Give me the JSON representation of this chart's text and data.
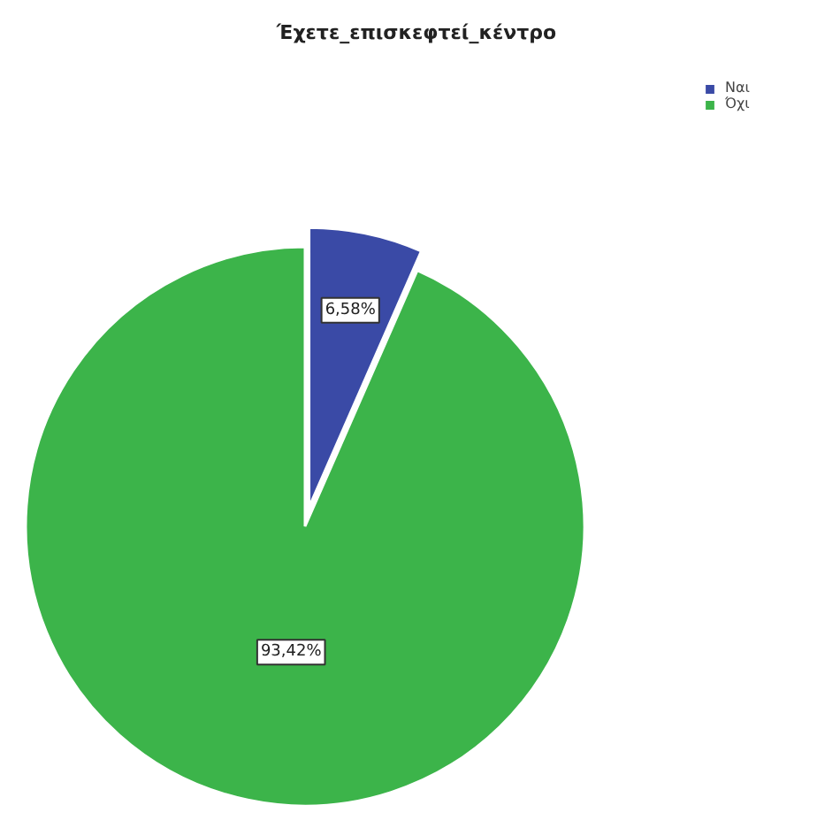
{
  "chart_data": {
    "type": "pie",
    "title": "Έχετε_επισκεφτεί_κέντρο",
    "categories": [
      "Ναι",
      "Όχι"
    ],
    "values": [
      6.58,
      93.42
    ],
    "colors": [
      "#3a4aa6",
      "#3cb44a"
    ],
    "value_labels": [
      "6,58%",
      "93,42%"
    ],
    "legend": "top right"
  }
}
